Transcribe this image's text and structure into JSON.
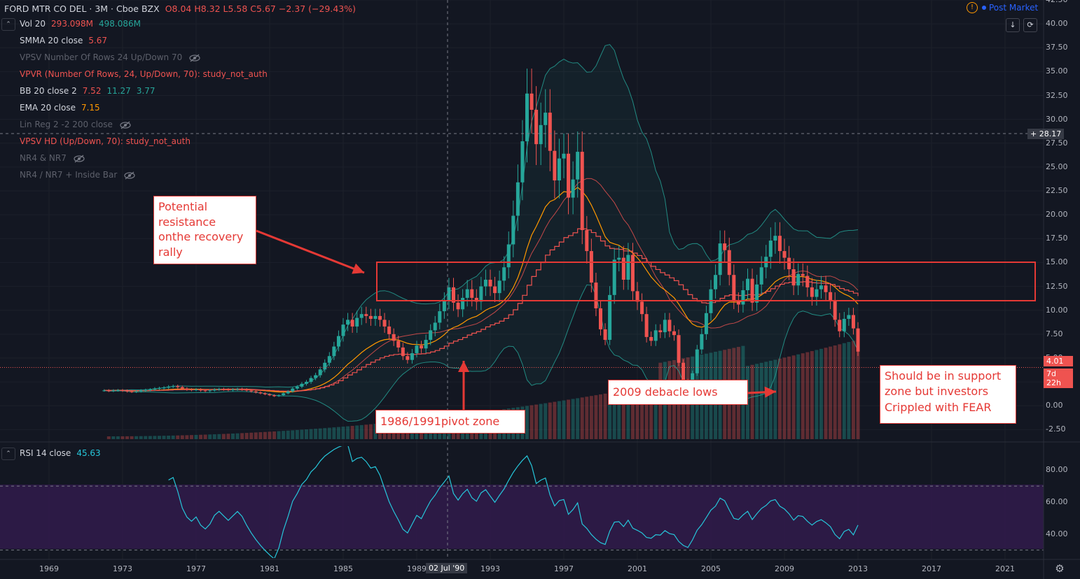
{
  "header": {
    "symbol": "FORD MTR CO DEL · 3M · Cboe BZX",
    "ohlc": "O8.04 H8.32 L5.58 C5.67 −2.37 (−29.43%)",
    "post_market": "Post Market"
  },
  "legend": [
    {
      "name": "Vol 20",
      "values": [
        "293.098M",
        "498.086M"
      ],
      "name_color": "#d1d4dc",
      "value_colors": [
        "#ef5350",
        "#26a69a"
      ],
      "hidden": false
    },
    {
      "name": "SMMA 20 close",
      "values": [
        "5.67"
      ],
      "name_color": "#d1d4dc",
      "value_colors": [
        "#ef5350"
      ],
      "hidden": false
    },
    {
      "name": "VPSV Number Of Rows 24 Up/Down 70",
      "values": [],
      "name_color": "#5d606b",
      "value_colors": [],
      "hidden": true
    },
    {
      "name": "VPVR (Number Of Rows, 24, Up/Down, 70): study_not_auth",
      "values": [],
      "name_color": "#ef5350",
      "value_colors": [],
      "hidden": false
    },
    {
      "name": "BB 20 close 2",
      "values": [
        "7.52",
        "11.27",
        "3.77"
      ],
      "name_color": "#d1d4dc",
      "value_colors": [
        "#ef5350",
        "#26a69a",
        "#26a69a"
      ],
      "hidden": false
    },
    {
      "name": "EMA 20 close",
      "values": [
        "7.15"
      ],
      "name_color": "#d1d4dc",
      "value_colors": [
        "#ff9800"
      ],
      "hidden": false
    },
    {
      "name": "Lin Reg 2 -2 200 close",
      "values": [],
      "name_color": "#5d606b",
      "value_colors": [],
      "hidden": true
    },
    {
      "name": "VPSV HD (Up/Down, 70): study_not_auth",
      "values": [],
      "name_color": "#ef5350",
      "value_colors": [],
      "hidden": false
    },
    {
      "name": "NR4 & NR7",
      "values": [],
      "name_color": "#5d606b",
      "value_colors": [],
      "hidden": true
    },
    {
      "name": "NR4 / NR7 + Inside Bar",
      "values": [],
      "name_color": "#5d606b",
      "value_colors": [],
      "hidden": true
    }
  ],
  "price_axis": [
    "42.50",
    "40.00",
    "37.50",
    "35.00",
    "32.50",
    "30.00",
    "27.50",
    "25.00",
    "22.50",
    "20.00",
    "17.50",
    "15.00",
    "12.50",
    "10.00",
    "7.50",
    "5.00",
    "2.50",
    "0.00",
    "-2.50"
  ],
  "time_axis": [
    "1969",
    "1973",
    "1977",
    "1981",
    "1985",
    "1989",
    "1993",
    "1997",
    "2001",
    "2005",
    "2009",
    "2013",
    "2017",
    "2021"
  ],
  "crosshair": {
    "time_label": "02 Jul '90",
    "price_label": "28.17"
  },
  "last_price": {
    "value": "4.01",
    "countdown": "7d 22h"
  },
  "rsi": {
    "name": "RSI 14 close",
    "value": "45.63",
    "axis": [
      "80.00",
      "60.00",
      "40.00"
    ]
  },
  "annotations": {
    "resistance": "Potential resistance onthe recovery rally",
    "pivot": "1986/1991pivot zone",
    "debacle": "2009 debacle lows",
    "support": "Should be in support zone but investors Crippled with FEAR"
  },
  "chart_data": {
    "type": "candlestick",
    "symbol": "FORD MTR CO DEL",
    "interval": "3M",
    "close": [
      1.6,
      1.55,
      1.6,
      1.62,
      1.58,
      1.5,
      1.45,
      1.5,
      1.6,
      1.65,
      1.7,
      1.8,
      1.85,
      1.9,
      2.0,
      2.05,
      1.95,
      1.8,
      1.7,
      1.65,
      1.7,
      1.6,
      1.55,
      1.6,
      1.7,
      1.75,
      1.7,
      1.65,
      1.7,
      1.75,
      1.7,
      1.6,
      1.5,
      1.4,
      1.3,
      1.2,
      1.1,
      1.0,
      1.1,
      1.3,
      1.5,
      1.8,
      2.0,
      2.3,
      2.5,
      2.9,
      3.2,
      3.8,
      4.5,
      5.2,
      6.2,
      7.3,
      8.5,
      9.0,
      8.3,
      9.2,
      9.6,
      9.4,
      9.1,
      9.4,
      9.0,
      8.3,
      7.5,
      6.8,
      6.1,
      5.2,
      4.8,
      5.5,
      6.3,
      6.0,
      6.9,
      7.9,
      8.7,
      9.9,
      11.0,
      12.4,
      10.8,
      10.1,
      11.3,
      12.2,
      11.3,
      10.9,
      12.5,
      13.2,
      12.5,
      11.8,
      13.1,
      14.5,
      16.9,
      19.9,
      23.4,
      27.7,
      32.7,
      31.0,
      27.4,
      29.4,
      30.7,
      26.7,
      23.6,
      25.9,
      26.4,
      21.8,
      23.7,
      26.6,
      18.4,
      16.2,
      12.9,
      10.2,
      8.0,
      6.9,
      11.6,
      15.3,
      15.5,
      13.2,
      15.8,
      12.0,
      10.9,
      9.6,
      7.2,
      6.8,
      7.9,
      7.7,
      9.0,
      7.8,
      7.4,
      4.5,
      2.6,
      1.6,
      3.4,
      5.9,
      7.5,
      9.7,
      12.2,
      13.7,
      17.0,
      16.3,
      13.7,
      11.0,
      10.6,
      12.1,
      13.3,
      10.8,
      12.7,
      14.5,
      15.6,
      17.3,
      17.8,
      16.2,
      15.5,
      14.3,
      12.6,
      13.8,
      13.6,
      12.4,
      11.4,
      12.2,
      12.6,
      11.9,
      11.0,
      9.0,
      7.8,
      9.1,
      9.5,
      8.1,
      5.67
    ],
    "start_year": 1972,
    "x_range": [
      "1969",
      "2021"
    ],
    "y_range": [
      -3.5,
      42.5
    ],
    "rsi_range": [
      25,
      95
    ],
    "rsi_levels": [
      70,
      30
    ],
    "rsi_last": 45.63,
    "overlays": [
      "Bollinger Bands 20 2",
      "EMA 20",
      "SMMA 20",
      "Volume 20"
    ],
    "resistance_zone": [
      10.5,
      14.5
    ],
    "last_close": 5.67,
    "current_price": 4.01
  }
}
